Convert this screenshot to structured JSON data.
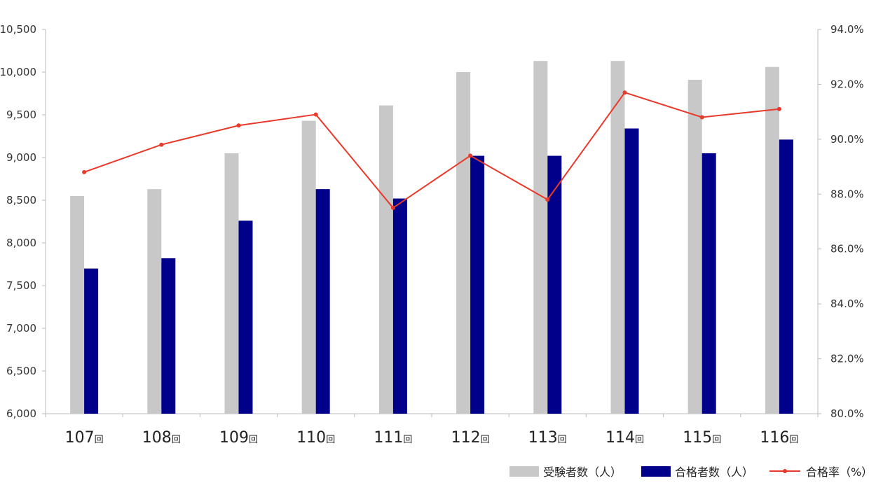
{
  "chart_data": {
    "type": "bar",
    "categories": [
      "107回",
      "108回",
      "109回",
      "110回",
      "111回",
      "112回",
      "113回",
      "114回",
      "115回",
      "116回"
    ],
    "category_numbers": [
      "107",
      "108",
      "109",
      "110",
      "111",
      "112",
      "113",
      "114",
      "115",
      "116"
    ],
    "category_suffix": "回",
    "series": [
      {
        "name": "受験者数（人）",
        "type": "bar",
        "axis": "left",
        "color": "#c8c8c8",
        "values": [
          8550,
          8630,
          9050,
          9430,
          9610,
          10000,
          10130,
          10130,
          9910,
          10060
        ]
      },
      {
        "name": "合格者数（人）",
        "type": "bar",
        "axis": "left",
        "color": "#00008b",
        "values": [
          7700,
          7820,
          8260,
          8630,
          8520,
          9020,
          9020,
          9340,
          9050,
          9210
        ]
      },
      {
        "name": "合格率（%）",
        "type": "line",
        "axis": "right",
        "color": "#e8392a",
        "values": [
          88.8,
          89.8,
          90.5,
          90.9,
          87.5,
          89.4,
          87.8,
          91.7,
          90.8,
          91.1
        ]
      }
    ],
    "y_left": {
      "ylim": [
        6000,
        10500
      ],
      "ticks": [
        "6,000",
        "6,500",
        "7,000",
        "7,500",
        "8,000",
        "8,500",
        "9,000",
        "9,500",
        "10,000",
        "10,500"
      ]
    },
    "y_right": {
      "ylim": [
        80,
        94
      ],
      "ticks": [
        "80.0%",
        "82.0%",
        "84.0%",
        "86.0%",
        "88.0%",
        "90.0%",
        "92.0%",
        "94.0%"
      ]
    },
    "legend_position": "bottom-right",
    "grid": false
  }
}
